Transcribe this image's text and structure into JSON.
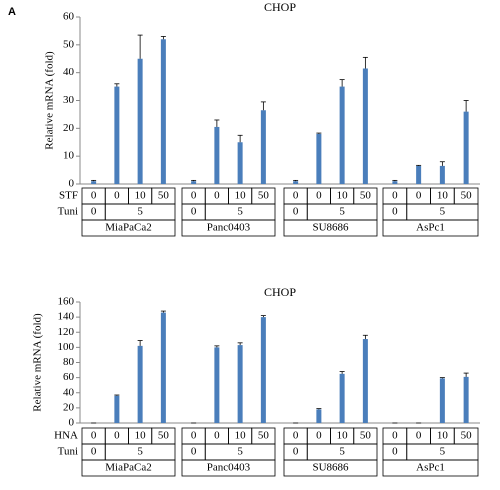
{
  "panel_label": "A",
  "chart_data": [
    {
      "type": "bar",
      "title": "CHOP",
      "y_label": "Relative  mRNA  (fold)",
      "ylim": [
        0,
        60
      ],
      "yticks": [
        0,
        10,
        20,
        30,
        40,
        50,
        60
      ],
      "groups": [
        "MiaPaCa2",
        "Panc0403",
        "SU8686",
        "AsPc1"
      ],
      "drug": {
        "label": "STF",
        "doses": [
          0,
          0,
          10,
          50
        ]
      },
      "tuni": {
        "label": "Tuni",
        "doses": [
          0,
          5
        ]
      },
      "series": [
        {
          "color": "#4a7ebb",
          "values": [
            1,
            35,
            45,
            52,
            1,
            20.5,
            15,
            26.5,
            1,
            18,
            35,
            41.5,
            1,
            6.5,
            6.5,
            26
          ],
          "errors": [
            0.3,
            1,
            8.5,
            1,
            0.3,
            2.5,
            2.5,
            3,
            0.3,
            0.3,
            2.5,
            4,
            0.3,
            0.2,
            1.5,
            4
          ]
        }
      ]
    },
    {
      "type": "bar",
      "title": "CHOP",
      "y_label": "Relative  mRNA  (fold)",
      "ylim": [
        0,
        160
      ],
      "yticks": [
        0,
        20,
        40,
        60,
        80,
        100,
        120,
        140,
        160
      ],
      "groups": [
        "MiaPaCa2",
        "Panc0403",
        "SU8686",
        "AsPc1"
      ],
      "drug": {
        "label": "HNA",
        "doses": [
          0,
          0,
          10,
          50
        ]
      },
      "tuni": {
        "label": "Tuni",
        "doses": [
          0,
          5
        ]
      },
      "series": [
        {
          "color": "#4a7ebb",
          "values": [
            0,
            36,
            102,
            146,
            0,
            100,
            103,
            140,
            0,
            18,
            65,
            111,
            0,
            0,
            59,
            61
          ],
          "errors": [
            0,
            1,
            7,
            2,
            0,
            2,
            3,
            2,
            0,
            1,
            3,
            5,
            0,
            0,
            1,
            5
          ]
        }
      ]
    }
  ]
}
